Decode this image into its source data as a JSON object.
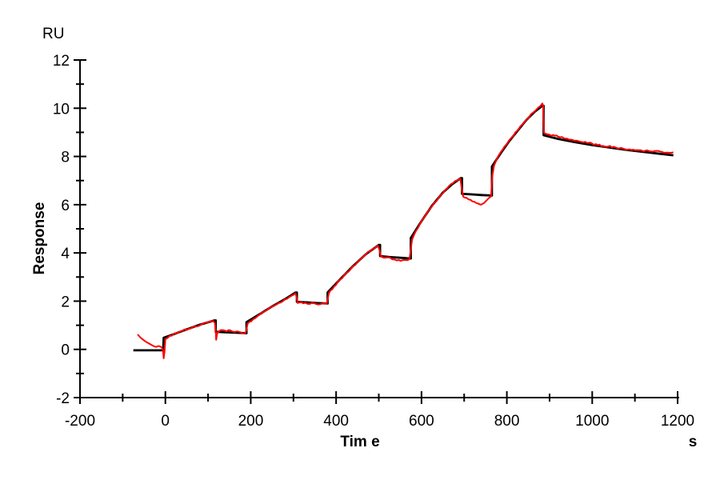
{
  "page": {
    "background": "#ffffff"
  },
  "chart_data": {
    "type": "line",
    "title": "",
    "xlabel": "Tim e",
    "ylabel": "Response",
    "x_unit_label": "s",
    "y_unit_label": "RU",
    "grid": false,
    "legend": "none",
    "axis_color": "#000000",
    "x_axis": {
      "range": [
        -200,
        1200
      ],
      "major_step": 200,
      "minor_step": 100,
      "major_ticks": [
        -200,
        0,
        200,
        400,
        600,
        800,
        1000,
        1200
      ],
      "tick_labels": [
        "-200",
        "0",
        "200",
        "400",
        "600",
        "800",
        "1000",
        "1200"
      ]
    },
    "y_axis": {
      "range": [
        -2,
        12
      ],
      "major_step": 2,
      "minor_step": 1,
      "major_ticks": [
        -2,
        0,
        2,
        4,
        6,
        8,
        10,
        12
      ],
      "tick_labels": [
        "-2",
        "0",
        "2",
        "4",
        "6",
        "8",
        "10",
        "12"
      ]
    },
    "series": [
      {
        "name": "fitted-curve",
        "color": "#000000",
        "stroke_width": 2.8,
        "noise_amplitude": 0,
        "points": [
          [
            -75,
            -0.04
          ],
          [
            -5,
            -0.04
          ],
          [
            -4,
            0.48
          ],
          [
            20,
            0.63
          ],
          [
            50,
            0.83
          ],
          [
            80,
            1.02
          ],
          [
            115,
            1.2
          ],
          [
            118,
            1.2
          ],
          [
            118,
            0.73
          ],
          [
            140,
            0.71
          ],
          [
            165,
            0.69
          ],
          [
            190,
            0.67
          ],
          [
            190,
            1.13
          ],
          [
            220,
            1.45
          ],
          [
            250,
            1.78
          ],
          [
            280,
            2.08
          ],
          [
            305,
            2.36
          ],
          [
            308,
            2.36
          ],
          [
            308,
            1.97
          ],
          [
            330,
            1.95
          ],
          [
            355,
            1.92
          ],
          [
            380,
            1.9
          ],
          [
            380,
            2.36
          ],
          [
            410,
            2.92
          ],
          [
            440,
            3.46
          ],
          [
            470,
            3.95
          ],
          [
            500,
            4.33
          ],
          [
            503,
            4.33
          ],
          [
            503,
            3.87
          ],
          [
            525,
            3.83
          ],
          [
            550,
            3.8
          ],
          [
            575,
            3.77
          ],
          [
            575,
            4.62
          ],
          [
            600,
            5.32
          ],
          [
            625,
            5.97
          ],
          [
            650,
            6.5
          ],
          [
            672,
            6.85
          ],
          [
            692,
            7.1
          ],
          [
            695,
            7.1
          ],
          [
            695,
            6.45
          ],
          [
            715,
            6.43
          ],
          [
            740,
            6.4
          ],
          [
            765,
            6.38
          ],
          [
            765,
            7.58
          ],
          [
            785,
            8.12
          ],
          [
            805,
            8.62
          ],
          [
            825,
            9.06
          ],
          [
            845,
            9.5
          ],
          [
            865,
            9.85
          ],
          [
            883,
            10.1
          ],
          [
            886,
            10.1
          ],
          [
            886,
            8.88
          ],
          [
            920,
            8.73
          ],
          [
            960,
            8.59
          ],
          [
            1000,
            8.47
          ],
          [
            1040,
            8.37
          ],
          [
            1080,
            8.27
          ],
          [
            1120,
            8.19
          ],
          [
            1160,
            8.11
          ],
          [
            1190,
            8.05
          ]
        ]
      },
      {
        "name": "measured-data",
        "color": "#ff0000",
        "stroke_width": 2,
        "noise_amplitude": 0.035,
        "points": [
          [
            -65,
            0.62
          ],
          [
            -58,
            0.48
          ],
          [
            -52,
            0.4
          ],
          [
            -46,
            0.32
          ],
          [
            -40,
            0.26
          ],
          [
            -34,
            0.2
          ],
          [
            -28,
            0.14
          ],
          [
            -22,
            0.1
          ],
          [
            -16,
            0.14
          ],
          [
            -10,
            0.1
          ],
          [
            -7,
            0.04
          ],
          [
            -5,
            -0.12
          ],
          [
            -4,
            -0.37
          ],
          [
            -2,
            -0.12
          ],
          [
            0,
            0.42
          ],
          [
            10,
            0.56
          ],
          [
            25,
            0.67
          ],
          [
            40,
            0.77
          ],
          [
            55,
            0.86
          ],
          [
            70,
            0.95
          ],
          [
            85,
            1.04
          ],
          [
            100,
            1.12
          ],
          [
            112,
            1.18
          ],
          [
            116,
            1.1
          ],
          [
            118,
            0.72
          ],
          [
            119,
            0.4
          ],
          [
            122,
            0.7
          ],
          [
            130,
            0.8
          ],
          [
            140,
            0.77
          ],
          [
            152,
            0.79
          ],
          [
            164,
            0.73
          ],
          [
            176,
            0.71
          ],
          [
            188,
            0.68
          ],
          [
            193,
            1.08
          ],
          [
            205,
            1.24
          ],
          [
            220,
            1.43
          ],
          [
            235,
            1.6
          ],
          [
            250,
            1.77
          ],
          [
            265,
            1.92
          ],
          [
            280,
            2.07
          ],
          [
            295,
            2.22
          ],
          [
            305,
            2.33
          ],
          [
            308,
            2.1
          ],
          [
            310,
            1.92
          ],
          [
            318,
            1.96
          ],
          [
            328,
            1.93
          ],
          [
            338,
            1.88
          ],
          [
            348,
            1.92
          ],
          [
            358,
            1.86
          ],
          [
            368,
            1.9
          ],
          [
            378,
            1.89
          ],
          [
            383,
            2.33
          ],
          [
            395,
            2.6
          ],
          [
            410,
            2.9
          ],
          [
            425,
            3.18
          ],
          [
            440,
            3.45
          ],
          [
            455,
            3.7
          ],
          [
            470,
            3.95
          ],
          [
            485,
            4.16
          ],
          [
            498,
            4.3
          ],
          [
            502,
            4.1
          ],
          [
            505,
            3.85
          ],
          [
            512,
            3.8
          ],
          [
            522,
            3.82
          ],
          [
            532,
            3.73
          ],
          [
            542,
            3.69
          ],
          [
            552,
            3.67
          ],
          [
            562,
            3.71
          ],
          [
            572,
            3.74
          ],
          [
            578,
            4.55
          ],
          [
            586,
            4.88
          ],
          [
            596,
            5.18
          ],
          [
            610,
            5.57
          ],
          [
            625,
            5.94
          ],
          [
            640,
            6.28
          ],
          [
            655,
            6.6
          ],
          [
            670,
            6.86
          ],
          [
            683,
            7.0
          ],
          [
            691,
            7.08
          ],
          [
            695,
            6.6
          ],
          [
            698,
            6.33
          ],
          [
            706,
            6.28
          ],
          [
            715,
            6.2
          ],
          [
            724,
            6.12
          ],
          [
            732,
            6.05
          ],
          [
            739,
            6.0
          ],
          [
            746,
            6.06
          ],
          [
            752,
            6.17
          ],
          [
            758,
            6.28
          ],
          [
            763,
            6.34
          ],
          [
            766,
            7.2
          ],
          [
            770,
            7.62
          ],
          [
            780,
            8.02
          ],
          [
            790,
            8.28
          ],
          [
            800,
            8.52
          ],
          [
            812,
            8.8
          ],
          [
            824,
            9.06
          ],
          [
            836,
            9.32
          ],
          [
            848,
            9.56
          ],
          [
            860,
            9.8
          ],
          [
            870,
            9.96
          ],
          [
            878,
            10.08
          ],
          [
            883,
            10.2
          ],
          [
            885,
            10.12
          ],
          [
            887,
            8.98
          ],
          [
            892,
            8.93
          ],
          [
            900,
            8.9
          ],
          [
            912,
            8.86
          ],
          [
            925,
            8.8
          ],
          [
            938,
            8.74
          ],
          [
            950,
            8.7
          ],
          [
            963,
            8.66
          ],
          [
            975,
            8.6
          ],
          [
            988,
            8.56
          ],
          [
            1000,
            8.53
          ],
          [
            1013,
            8.47
          ],
          [
            1025,
            8.44
          ],
          [
            1038,
            8.42
          ],
          [
            1050,
            8.4
          ],
          [
            1063,
            8.33
          ],
          [
            1075,
            8.31
          ],
          [
            1088,
            8.29
          ],
          [
            1100,
            8.26
          ],
          [
            1113,
            8.26
          ],
          [
            1125,
            8.24
          ],
          [
            1138,
            8.21
          ],
          [
            1150,
            8.23
          ],
          [
            1163,
            8.19
          ],
          [
            1175,
            8.16
          ],
          [
            1190,
            8.17
          ]
        ]
      }
    ]
  }
}
